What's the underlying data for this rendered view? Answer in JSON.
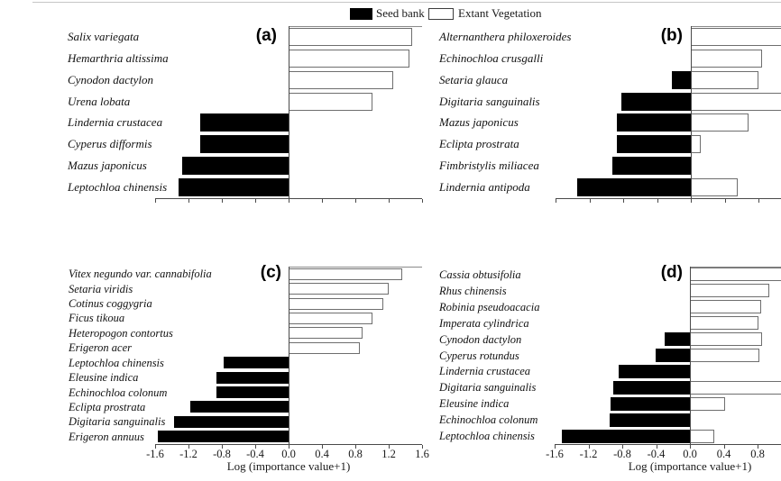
{
  "figure": {
    "legend": {
      "seed_bank_label": "Seed bank",
      "extant_vegetation_label": "Extant Vegetation",
      "seed_bank_color": "#000000",
      "extant_vegetation_color": "#ffffff"
    },
    "axis_title": "Log (importance value+1)"
  },
  "chart_data": {
    "type": "bar",
    "orientation": "horizontal",
    "title": "",
    "xlabel": "Log (importance value+1)",
    "x_range": [
      -1.6,
      1.6
    ],
    "tick_step": 0.4,
    "grid": false,
    "legend_position": "top-center",
    "series_names": [
      "Seed bank",
      "Extant Vegetation"
    ],
    "panels": [
      {
        "letter": "(a)",
        "show_tick_labels": false,
        "show_axis_title": false,
        "rows": [
          {
            "species": "Salix variegata",
            "seed_bank": null,
            "extant_vegetation": 1.48
          },
          {
            "species": "Hemarthria altissima",
            "seed_bank": null,
            "extant_vegetation": 1.45
          },
          {
            "species": "Cynodon dactylon",
            "seed_bank": null,
            "extant_vegetation": 1.25
          },
          {
            "species": "Urena lobata",
            "seed_bank": null,
            "extant_vegetation": 1.01
          },
          {
            "species": "Lindernia crustacea",
            "seed_bank": -1.06,
            "extant_vegetation": null
          },
          {
            "species": "Cyperus difformis",
            "seed_bank": -1.06,
            "extant_vegetation": null
          },
          {
            "species": "Mazus japonicus",
            "seed_bank": -1.28,
            "extant_vegetation": null
          },
          {
            "species": "Leptochloa chinensis",
            "seed_bank": -1.32,
            "extant_vegetation": null
          }
        ]
      },
      {
        "letter": "(b)",
        "show_tick_labels": false,
        "show_axis_title": false,
        "note": "right side of panel is cut off at the image edge",
        "rows": [
          {
            "species": "Alternanthera philoxeroides",
            "seed_bank": null,
            "extant_vegetation": 1.25,
            "extant_clipped_at_edge": true
          },
          {
            "species": "Echinochloa crusgalli",
            "seed_bank": null,
            "extant_vegetation": 0.84
          },
          {
            "species": "Setaria glauca",
            "seed_bank": -0.22,
            "extant_vegetation": 0.8
          },
          {
            "species": "Digitaria sanguinalis",
            "seed_bank": -0.82,
            "extant_vegetation": 1.25,
            "extant_clipped_at_edge": true
          },
          {
            "species": "Mazus japonicus",
            "seed_bank": -0.87,
            "extant_vegetation": 0.68
          },
          {
            "species": "Eclipta prostrata",
            "seed_bank": -0.87,
            "extant_vegetation": 0.12
          },
          {
            "species": "Fimbristylis miliacea",
            "seed_bank": -0.93,
            "extant_vegetation": null
          },
          {
            "species": "Lindernia antipoda",
            "seed_bank": -1.34,
            "extant_vegetation": 0.55
          }
        ]
      },
      {
        "letter": "(c)",
        "show_tick_labels": true,
        "show_axis_title": true,
        "tick_labels": [
          "-1.6",
          "-1.2",
          "-0.8",
          "-0.4",
          "0.0",
          "0.4",
          "0.8",
          "1.2",
          "1.6"
        ],
        "rows": [
          {
            "species": "Vitex negundo var. cannabifolia",
            "seed_bank": null,
            "extant_vegetation": 1.36
          },
          {
            "species": "Setaria viridis",
            "seed_bank": null,
            "extant_vegetation": 1.2
          },
          {
            "species": "Cotinus coggygria",
            "seed_bank": null,
            "extant_vegetation": 1.14
          },
          {
            "species": "Ficus tikoua",
            "seed_bank": null,
            "extant_vegetation": 1.0
          },
          {
            "species": "Heteropogon contortus",
            "seed_bank": null,
            "extant_vegetation": 0.89
          },
          {
            "species": "Erigeron acer",
            "seed_bank": null,
            "extant_vegetation": 0.85
          },
          {
            "species": "Leptochloa chinensis",
            "seed_bank": -0.78,
            "extant_vegetation": null
          },
          {
            "species": "Eleusine indica",
            "seed_bank": -0.86,
            "extant_vegetation": null
          },
          {
            "species": "Echinochloa colonum",
            "seed_bank": -0.86,
            "extant_vegetation": null
          },
          {
            "species": "Eclipta prostrata",
            "seed_bank": -1.18,
            "extant_vegetation": null
          },
          {
            "species": "Digitaria sanguinalis",
            "seed_bank": -1.37,
            "extant_vegetation": null
          },
          {
            "species": "Erigeron annuus",
            "seed_bank": -1.57,
            "extant_vegetation": null
          }
        ]
      },
      {
        "letter": "(d)",
        "show_tick_labels": true,
        "show_axis_title": true,
        "tick_labels": [
          "-1.6",
          "-1.2",
          "-0.8",
          "-0.4",
          "0.0",
          "0.4",
          "0.8"
        ],
        "note": "right side of panel is cut off at the image edge",
        "rows": [
          {
            "species": "Cassia obtusifolia",
            "seed_bank": null,
            "extant_vegetation": 1.25,
            "extant_clipped_at_edge": true
          },
          {
            "species": "Rhus chinensis",
            "seed_bank": null,
            "extant_vegetation": 0.94
          },
          {
            "species": "Robinia pseudoacacia",
            "seed_bank": null,
            "extant_vegetation": 0.84
          },
          {
            "species": "Imperata cylindrica",
            "seed_bank": null,
            "extant_vegetation": 0.81
          },
          {
            "species": "Cynodon dactylon",
            "seed_bank": -0.3,
            "extant_vegetation": 0.85
          },
          {
            "species": "Cyperus rotundus",
            "seed_bank": -0.41,
            "extant_vegetation": 0.82
          },
          {
            "species": "Lindernia crustacea",
            "seed_bank": -0.84,
            "extant_vegetation": null
          },
          {
            "species": "Digitaria sanguinalis",
            "seed_bank": -0.91,
            "extant_vegetation": 1.25,
            "extant_clipped_at_edge": true
          },
          {
            "species": "Eleusine indica",
            "seed_bank": -0.94,
            "extant_vegetation": 0.42
          },
          {
            "species": "Echinochloa colonum",
            "seed_bank": -0.95,
            "extant_vegetation": null
          },
          {
            "species": "Leptochloa chinensis",
            "seed_bank": -1.51,
            "extant_vegetation": 0.29
          }
        ]
      }
    ]
  }
}
